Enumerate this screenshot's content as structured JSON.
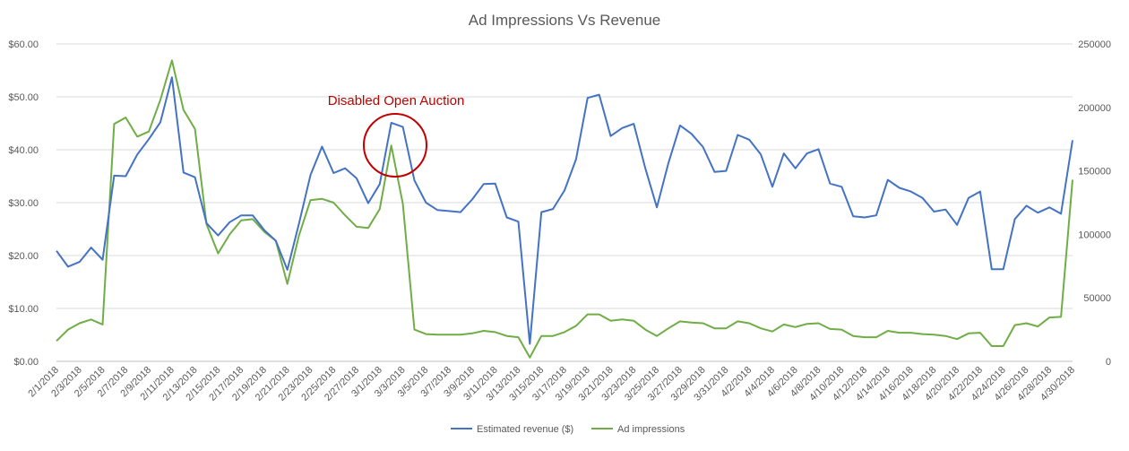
{
  "chart_data": {
    "type": "line",
    "title": "Ad Impressions Vs Revenue",
    "annotation": "Disabled Open Auction",
    "colors": {
      "revenue": "#4472C4",
      "impressions": "#70AD47",
      "annotation": "#C00000",
      "grid": "#D9D9D9",
      "axis_text": "#595959"
    },
    "x": [
      "2/1/2018",
      "2/2/2018",
      "2/3/2018",
      "2/4/2018",
      "2/5/2018",
      "2/6/2018",
      "2/7/2018",
      "2/8/2018",
      "2/9/2018",
      "2/10/2018",
      "2/11/2018",
      "2/12/2018",
      "2/13/2018",
      "2/14/2018",
      "2/15/2018",
      "2/16/2018",
      "2/17/2018",
      "2/18/2018",
      "2/19/2018",
      "2/20/2018",
      "2/21/2018",
      "2/22/2018",
      "2/23/2018",
      "2/24/2018",
      "2/25/2018",
      "2/26/2018",
      "2/27/2018",
      "2/28/2018",
      "3/1/2018",
      "3/2/2018",
      "3/3/2018",
      "3/4/2018",
      "3/5/2018",
      "3/6/2018",
      "3/7/2018",
      "3/8/2018",
      "3/9/2018",
      "3/10/2018",
      "3/11/2018",
      "3/12/2018",
      "3/13/2018",
      "3/14/2018",
      "3/15/2018",
      "3/16/2018",
      "3/17/2018",
      "3/18/2018",
      "3/19/2018",
      "3/20/2018",
      "3/21/2018",
      "3/22/2018",
      "3/23/2018",
      "3/24/2018",
      "3/25/2018",
      "3/26/2018",
      "3/27/2018",
      "3/28/2018",
      "3/29/2018",
      "3/30/2018",
      "3/31/2018",
      "4/1/2018",
      "4/2/2018",
      "4/3/2018",
      "4/4/2018",
      "4/5/2018",
      "4/6/2018",
      "4/7/2018",
      "4/8/2018",
      "4/9/2018",
      "4/10/2018",
      "4/11/2018",
      "4/12/2018",
      "4/13/2018",
      "4/14/2018",
      "4/15/2018",
      "4/16/2018",
      "4/17/2018",
      "4/18/2018",
      "4/19/2018",
      "4/20/2018",
      "4/21/2018",
      "4/22/2018",
      "4/23/2018",
      "4/24/2018",
      "4/25/2018",
      "4/26/2018",
      "4/27/2018",
      "4/28/2018",
      "4/29/2018",
      "4/30/2018"
    ],
    "x_tick_labels": [
      "2/1/2018",
      "2/3/2018",
      "2/5/2018",
      "2/7/2018",
      "2/9/2018",
      "2/11/2018",
      "2/13/2018",
      "2/15/2018",
      "2/17/2018",
      "2/19/2018",
      "2/21/2018",
      "2/23/2018",
      "2/25/2018",
      "2/27/2018",
      "3/1/2018",
      "3/3/2018",
      "3/5/2018",
      "3/7/2018",
      "3/9/2018",
      "3/11/2018",
      "3/13/2018",
      "3/15/2018",
      "3/17/2018",
      "3/19/2018",
      "3/21/2018",
      "3/23/2018",
      "3/25/2018",
      "3/27/2018",
      "3/29/2018",
      "3/31/2018",
      "4/2/2018",
      "4/4/2018",
      "4/6/2018",
      "4/8/2018",
      "4/10/2018",
      "4/12/2018",
      "4/14/2018",
      "4/16/2018",
      "4/18/2018",
      "4/20/2018",
      "4/22/2018",
      "4/24/2018",
      "4/26/2018",
      "4/28/2018",
      "4/30/2018"
    ],
    "y_left": {
      "lim": [
        0,
        60
      ],
      "ticks": [
        "$0.00",
        "$10.00",
        "$20.00",
        "$30.00",
        "$40.00",
        "$50.00",
        "$60.00"
      ]
    },
    "y_right": {
      "lim": [
        0,
        250000
      ],
      "ticks": [
        "0",
        "50000",
        "100000",
        "150000",
        "200000",
        "250000"
      ]
    },
    "grid": true,
    "legend_position": "bottom",
    "series": [
      {
        "name": "Estimated revenue ($)",
        "axis": "left",
        "values": [
          20.9,
          17.9,
          18.8,
          21.5,
          19.2,
          35.1,
          35.0,
          39.1,
          42.0,
          45.2,
          53.7,
          35.7,
          34.8,
          26.1,
          23.8,
          26.3,
          27.6,
          27.6,
          24.8,
          22.8,
          17.3,
          26.0,
          35.2,
          40.6,
          35.6,
          36.5,
          34.6,
          29.9,
          33.5,
          45.1,
          44.3,
          34.2,
          30.0,
          28.6,
          28.4,
          28.2,
          30.6,
          33.5,
          33.6,
          27.2,
          26.4,
          3.3,
          28.2,
          28.8,
          32.3,
          38.2,
          49.8,
          50.4,
          42.6,
          44.1,
          44.9,
          36.5,
          29.1,
          37.5,
          44.6,
          43.0,
          40.5,
          35.8,
          36.0,
          42.8,
          41.9,
          39.1,
          33.0,
          39.3,
          36.5,
          39.3,
          40.1,
          33.6,
          33.0,
          27.4,
          27.2,
          27.6,
          34.3,
          32.8,
          32.1,
          30.9,
          28.3,
          28.7,
          25.8,
          30.9,
          32.1,
          17.4,
          17.4,
          26.9,
          29.4,
          28.1,
          29.1,
          27.9,
          41.8
        ]
      },
      {
        "name": "Ad impressions",
        "axis": "right",
        "values": [
          16000,
          25000,
          30000,
          33000,
          29000,
          187000,
          192000,
          177000,
          181000,
          206000,
          237000,
          198000,
          183000,
          108000,
          85000,
          100000,
          111000,
          112000,
          102000,
          95000,
          61000,
          99000,
          127000,
          128000,
          125000,
          115000,
          106000,
          105000,
          120000,
          170000,
          124000,
          25000,
          21500,
          21000,
          21000,
          21000,
          22000,
          24000,
          23000,
          20000,
          19000,
          3000,
          20000,
          20000,
          23000,
          28000,
          37000,
          37000,
          32000,
          33000,
          32000,
          25000,
          20000,
          26000,
          31500,
          30500,
          30000,
          26000,
          26000,
          31500,
          30000,
          26000,
          23500,
          29000,
          27000,
          29500,
          30000,
          25500,
          25000,
          20000,
          19000,
          19000,
          24000,
          22500,
          22500,
          21500,
          21000,
          20000,
          17500,
          22000,
          22500,
          12000,
          12000,
          28500,
          30000,
          27500,
          34500,
          35000,
          143000
        ]
      }
    ]
  }
}
